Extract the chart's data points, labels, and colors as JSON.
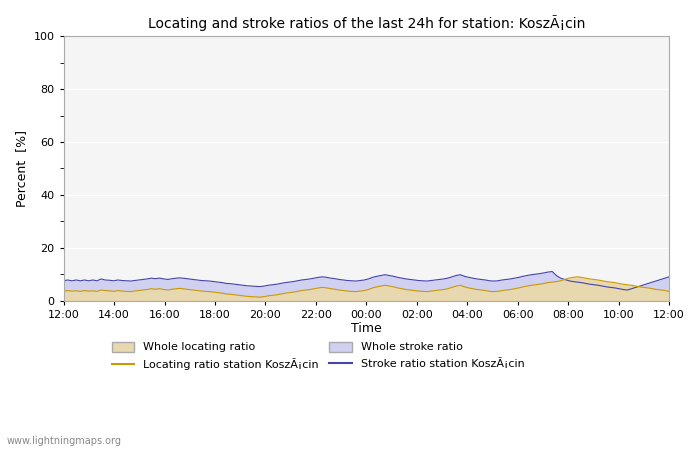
{
  "title": "Locating and stroke ratios of the last 24h for station: KoszÃ¡cin",
  "xlabel": "Time",
  "ylabel": "Percent  [%]",
  "ylim": [
    0,
    100
  ],
  "yticks": [
    0,
    20,
    40,
    60,
    80,
    100
  ],
  "xtick_labels": [
    "12:00",
    "14:00",
    "16:00",
    "18:00",
    "20:00",
    "22:00",
    "00:00",
    "02:00",
    "04:00",
    "06:00",
    "08:00",
    "10:00",
    "12:00"
  ],
  "background_color": "#ffffff",
  "plot_bg_color": "#f5f5f5",
  "grid_color": "#ffffff",
  "whole_locating_fill_color": "#e8d8b0",
  "whole_locating_line_color": "#c8a850",
  "whole_stroke_fill_color": "#d0d0f0",
  "whole_stroke_line_color": "#8888cc",
  "locating_station_color": "#cc9900",
  "stroke_station_color": "#4444aa",
  "watermark": "www.lightningmaps.org",
  "legend_labels": [
    "Whole locating ratio",
    "Locating ratio station KoszÃ¡cin",
    "Whole stroke ratio",
    "Stroke ratio station KoszÃ¡cin"
  ],
  "whole_locating": [
    3.5,
    3.8,
    3.6,
    3.7,
    3.5,
    3.8,
    3.6,
    3.7,
    3.5,
    4.0,
    3.8,
    3.7,
    3.5,
    3.8,
    3.6,
    3.5,
    3.4,
    3.6,
    3.8,
    4.0,
    4.2,
    4.5,
    4.3,
    4.5,
    4.2,
    4.0,
    4.3,
    4.5,
    4.6,
    4.4,
    4.2,
    4.0,
    3.8,
    3.6,
    3.5,
    3.4,
    3.2,
    3.0,
    2.8,
    2.5,
    2.4,
    2.2,
    2.0,
    1.8,
    1.6,
    1.5,
    1.4,
    1.3,
    1.5,
    1.8,
    2.0,
    2.2,
    2.5,
    2.8,
    3.0,
    3.2,
    3.5,
    3.8,
    4.0,
    4.2,
    4.5,
    4.8,
    5.0,
    4.8,
    4.5,
    4.3,
    4.0,
    3.8,
    3.6,
    3.5,
    3.4,
    3.6,
    3.8,
    4.2,
    4.8,
    5.2,
    5.5,
    5.8,
    5.5,
    5.2,
    4.8,
    4.5,
    4.2,
    4.0,
    3.8,
    3.6,
    3.5,
    3.4,
    3.6,
    3.8,
    4.0,
    4.2,
    4.5,
    5.0,
    5.5,
    5.8,
    5.2,
    4.8,
    4.5,
    4.2,
    4.0,
    3.8,
    3.5,
    3.4,
    3.5,
    3.8,
    4.0,
    4.2,
    4.5,
    4.8,
    5.2,
    5.5,
    5.8,
    6.0,
    6.2,
    6.5,
    6.8,
    7.0,
    7.2,
    7.5,
    8.0,
    8.5,
    8.8,
    9.0,
    8.8,
    8.5,
    8.2,
    8.0,
    7.8,
    7.5,
    7.2,
    7.0,
    6.8,
    6.5,
    6.2,
    6.0,
    5.8,
    5.5,
    5.2,
    5.0,
    4.8,
    4.5,
    4.2,
    4.0,
    3.8,
    3.5
  ],
  "whole_stroke": [
    7.5,
    7.8,
    7.5,
    7.8,
    7.5,
    7.8,
    7.5,
    7.8,
    7.5,
    8.2,
    7.8,
    7.7,
    7.5,
    7.8,
    7.6,
    7.5,
    7.4,
    7.6,
    7.8,
    8.0,
    8.2,
    8.5,
    8.3,
    8.5,
    8.2,
    8.0,
    8.3,
    8.5,
    8.6,
    8.4,
    8.2,
    8.0,
    7.8,
    7.6,
    7.5,
    7.4,
    7.2,
    7.0,
    6.8,
    6.5,
    6.4,
    6.2,
    6.0,
    5.8,
    5.6,
    5.5,
    5.4,
    5.3,
    5.5,
    5.8,
    6.0,
    6.2,
    6.5,
    6.8,
    7.0,
    7.2,
    7.5,
    7.8,
    8.0,
    8.2,
    8.5,
    8.8,
    9.0,
    8.8,
    8.5,
    8.3,
    8.0,
    7.8,
    7.6,
    7.5,
    7.4,
    7.6,
    7.8,
    8.2,
    8.8,
    9.2,
    9.5,
    9.8,
    9.5,
    9.2,
    8.8,
    8.5,
    8.2,
    8.0,
    7.8,
    7.6,
    7.5,
    7.4,
    7.6,
    7.8,
    8.0,
    8.2,
    8.5,
    9.0,
    9.5,
    9.8,
    9.2,
    8.8,
    8.5,
    8.2,
    8.0,
    7.8,
    7.5,
    7.4,
    7.5,
    7.8,
    8.0,
    8.2,
    8.5,
    8.8,
    9.2,
    9.5,
    9.8,
    10.0,
    10.2,
    10.5,
    10.8,
    11.0,
    9.5,
    8.5,
    8.0,
    7.5,
    7.2,
    7.0,
    6.8,
    6.5,
    6.2,
    6.0,
    5.8,
    5.5,
    5.2,
    5.0,
    4.8,
    4.5,
    4.2,
    4.0,
    4.5,
    5.0,
    5.5,
    6.0,
    6.5,
    7.0,
    7.5,
    8.0,
    8.5,
    9.0
  ],
  "n_points": 146
}
